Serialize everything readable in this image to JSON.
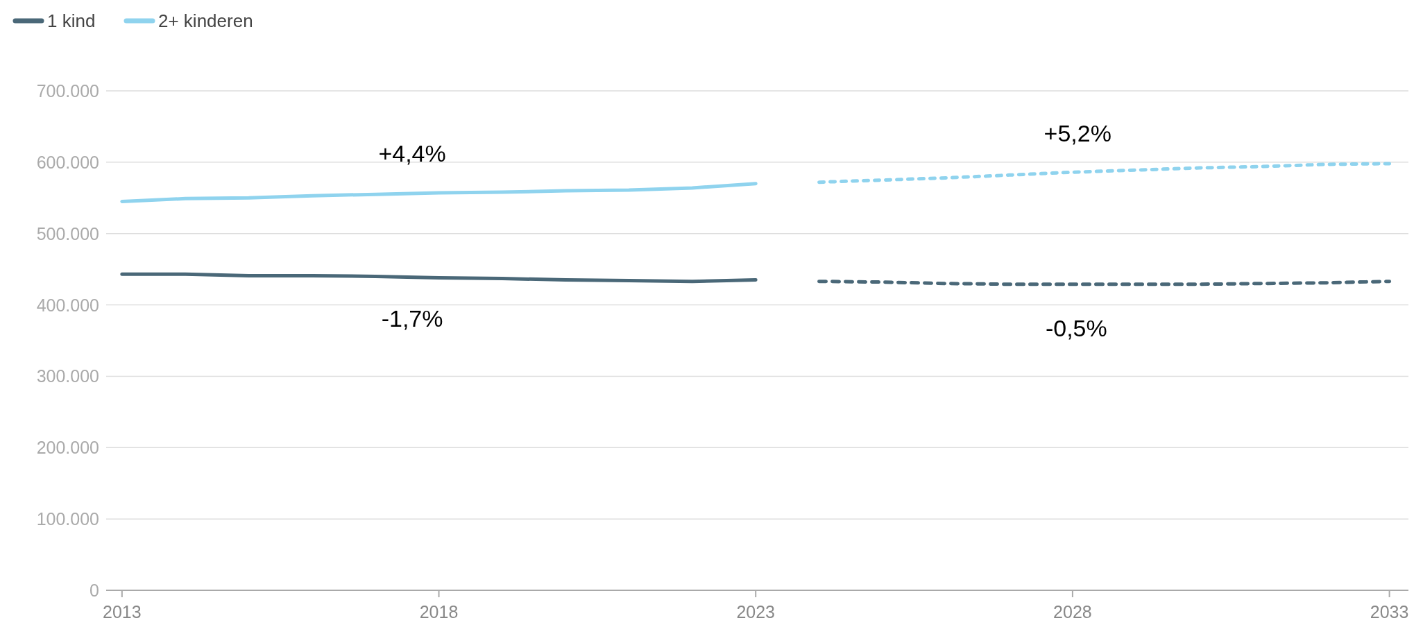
{
  "chart_data": {
    "type": "line",
    "xlim": [
      2012.75,
      2033.3
    ],
    "xticks": [
      2013,
      2018,
      2023,
      2028,
      2033
    ],
    "ylim": [
      0,
      700000
    ],
    "yticks": [
      {
        "value": 0,
        "label": "0"
      },
      {
        "value": 100000,
        "label": "100.000"
      },
      {
        "value": 200000,
        "label": "200.000"
      },
      {
        "value": 300000,
        "label": "300.000"
      },
      {
        "value": 400000,
        "label": "400.000"
      },
      {
        "value": 500000,
        "label": "500.000"
      },
      {
        "value": 600000,
        "label": "600.000"
      },
      {
        "value": 700000,
        "label": "700.000"
      }
    ],
    "grid": "y",
    "legend": "top left",
    "series": [
      {
        "name": "1 kind",
        "color": "#4a6878",
        "line_style": "solid",
        "x": [
          2013,
          2014,
          2015,
          2016,
          2017,
          2018,
          2019,
          2020,
          2021,
          2022,
          2023
        ],
        "values": [
          443000,
          443000,
          441000,
          441000,
          440000,
          438000,
          437000,
          435000,
          434000,
          433000,
          435000
        ]
      },
      {
        "name": "2+ kinderen",
        "color": "#8fd3ee",
        "line_style": "solid",
        "x": [
          2013,
          2014,
          2015,
          2016,
          2017,
          2018,
          2019,
          2020,
          2021,
          2022,
          2023
        ],
        "values": [
          545000,
          549000,
          550000,
          553000,
          555000,
          557000,
          558000,
          560000,
          561000,
          564000,
          570000
        ]
      },
      {
        "color": "#4a6878",
        "line_style": "dashed",
        "x": [
          2024,
          2025,
          2026,
          2027,
          2028,
          2029,
          2030,
          2031,
          2032,
          2033
        ],
        "values": [
          433000,
          432000,
          430000,
          429000,
          429000,
          429000,
          429000,
          430000,
          431000,
          433000
        ]
      },
      {
        "color": "#8fd3ee",
        "line_style": "dotted",
        "x": [
          2024,
          2025,
          2026,
          2027,
          2028,
          2029,
          2030,
          2031,
          2032,
          2033
        ],
        "values": [
          572000,
          575000,
          578000,
          582000,
          586000,
          589000,
          592000,
          594000,
          597000,
          598000
        ]
      }
    ],
    "annotations": [
      "+4,4%",
      "-1,7%",
      "+5,2%",
      "-0,5%"
    ]
  }
}
